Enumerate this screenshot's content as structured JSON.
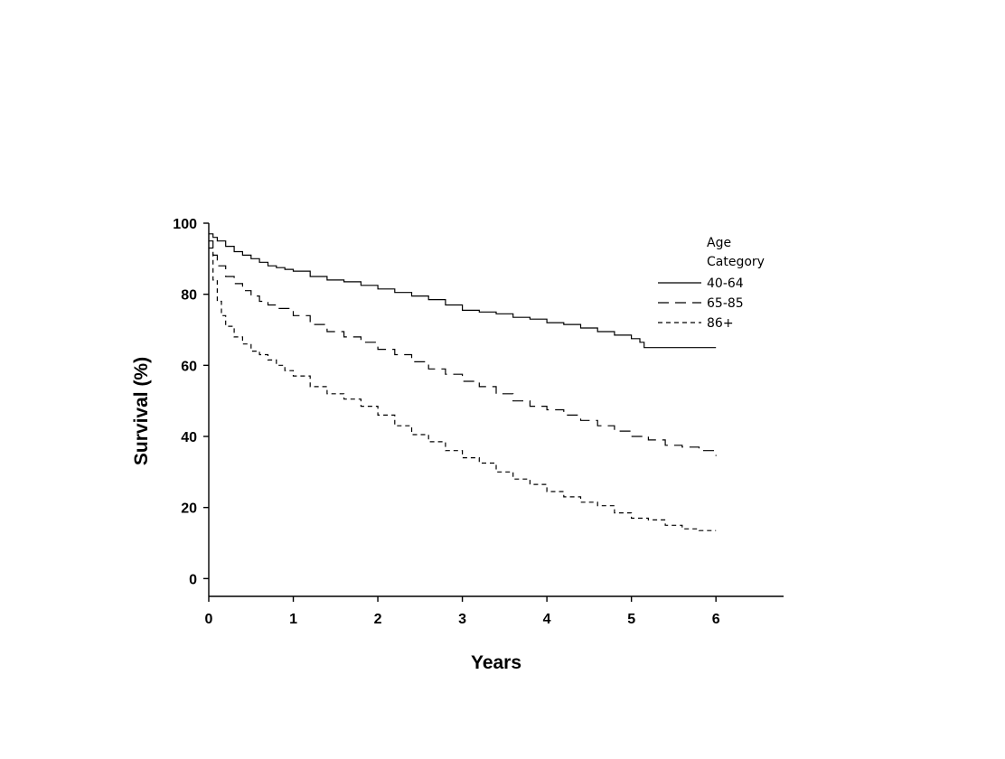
{
  "chart_data": {
    "type": "line",
    "xlabel": "Years",
    "ylabel": "Survival (%)",
    "xlim": [
      0,
      6.8
    ],
    "ylim": [
      -5,
      100
    ],
    "xticks": [
      "0",
      "1",
      "2",
      "3",
      "4",
      "5",
      "6"
    ],
    "yticks": [
      "0",
      "20",
      "40",
      "60",
      "80",
      "100"
    ],
    "grid": false,
    "legend": {
      "title_lines": [
        "Age",
        "Category"
      ],
      "placement": "top-right"
    },
    "series": [
      {
        "name": "40-64",
        "line_style": "solid",
        "x": [
          0,
          0.05,
          0.1,
          0.2,
          0.3,
          0.4,
          0.5,
          0.6,
          0.7,
          0.8,
          0.9,
          1.0,
          1.2,
          1.4,
          1.6,
          1.8,
          2.0,
          2.2,
          2.4,
          2.6,
          2.8,
          3.0,
          3.2,
          3.4,
          3.6,
          3.8,
          4.0,
          4.2,
          4.4,
          4.6,
          4.8,
          5.0,
          5.1,
          5.15,
          5.5,
          6.0
        ],
        "y": [
          97,
          96,
          95,
          93.5,
          92,
          91,
          90,
          89,
          88,
          87.5,
          87,
          86.5,
          85,
          84,
          83.5,
          82.5,
          81.5,
          80.5,
          79.5,
          78.5,
          77,
          75.5,
          75,
          74.5,
          73.5,
          73,
          72,
          71.5,
          70.5,
          69.5,
          68.5,
          67.5,
          66.5,
          65,
          65,
          65
        ]
      },
      {
        "name": "65-85",
        "line_style": "dashed",
        "x": [
          0,
          0.05,
          0.1,
          0.2,
          0.3,
          0.4,
          0.5,
          0.6,
          0.7,
          0.8,
          1.0,
          1.2,
          1.4,
          1.6,
          1.8,
          2.0,
          2.2,
          2.4,
          2.6,
          2.8,
          3.0,
          3.2,
          3.4,
          3.6,
          3.8,
          4.0,
          4.2,
          4.4,
          4.6,
          4.8,
          5.0,
          5.2,
          5.4,
          5.6,
          5.8,
          6.0
        ],
        "y": [
          95,
          91,
          88,
          85,
          83,
          81,
          79.5,
          78,
          77,
          76,
          74,
          71.5,
          69.5,
          68,
          66.5,
          64.5,
          63,
          61,
          59,
          57.5,
          55.5,
          54,
          52,
          50,
          48.5,
          47.5,
          46,
          44.5,
          43,
          41.5,
          40,
          39,
          37.5,
          37,
          36,
          34.5
        ]
      },
      {
        "name": "86+",
        "line_style": "short-dashed",
        "x": [
          0,
          0.05,
          0.1,
          0.15,
          0.2,
          0.3,
          0.4,
          0.5,
          0.6,
          0.7,
          0.8,
          0.9,
          1.0,
          1.2,
          1.4,
          1.6,
          1.8,
          2.0,
          2.2,
          2.4,
          2.6,
          2.8,
          3.0,
          3.2,
          3.4,
          3.6,
          3.8,
          4.0,
          4.2,
          4.4,
          4.6,
          4.8,
          5.0,
          5.2,
          5.4,
          5.6,
          5.8,
          6.0
        ],
        "y": [
          93,
          84,
          78,
          74,
          71,
          68,
          66,
          64,
          63,
          61.5,
          60,
          58.5,
          57,
          54,
          52,
          50.5,
          48.5,
          46,
          43,
          40.5,
          38.5,
          36,
          34,
          32.5,
          30,
          28,
          26.5,
          24.5,
          23,
          21.5,
          20.5,
          18.5,
          17,
          16.5,
          15,
          14,
          13.5,
          13.5
        ]
      }
    ]
  },
  "styles": {
    "line_color": "#000000",
    "background": "#ffffff"
  }
}
